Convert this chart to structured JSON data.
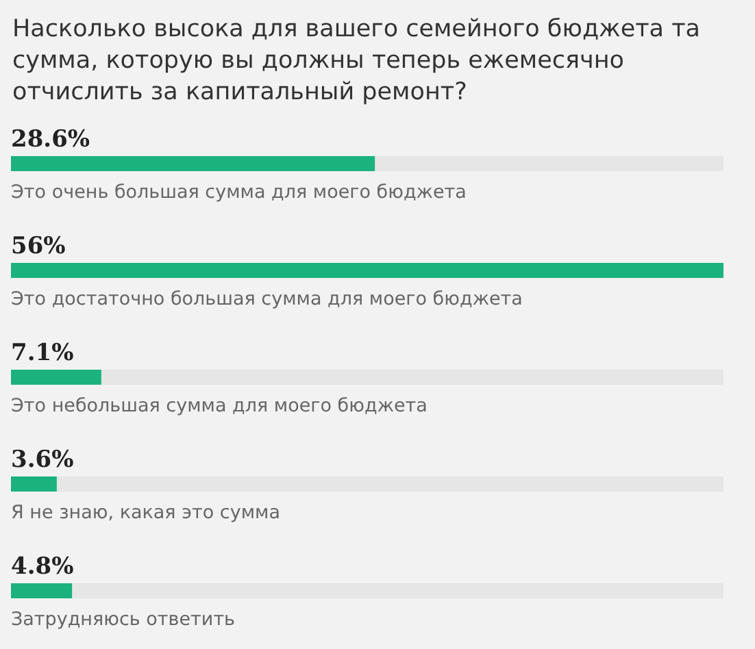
{
  "chart_data": {
    "type": "bar",
    "orientation": "horizontal",
    "title": "Насколько высока для вашего семейного бюджета та сумма, которую вы должны теперь ежемесячно отчислить за капитальный ремонт?",
    "categories": [
      "Это очень большая сумма для моего бюджета",
      "Это достаточно большая сумма для моего бюджета",
      "Это небольшая сумма для моего бюджета",
      "Я не знаю, какая это сумма",
      "Затрудняюсь ответить"
    ],
    "values": [
      28.6,
      56,
      7.1,
      3.6,
      4.8
    ],
    "value_labels": [
      "28.6%",
      "56%",
      "7.1%",
      "3.6%",
      "4.8%"
    ],
    "color": "#1bb27e",
    "xlim": [
      0,
      56
    ],
    "tick_labels": "y"
  }
}
